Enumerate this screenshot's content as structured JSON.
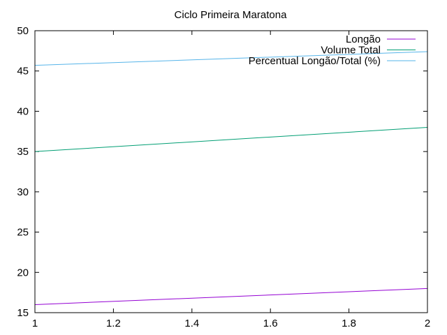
{
  "chart_data": {
    "type": "line",
    "title": "Ciclo Primeira Maratona",
    "xlabel": "",
    "ylabel": "",
    "xlim": [
      1,
      2
    ],
    "ylim": [
      15,
      50
    ],
    "xticks": [
      1,
      1.2,
      1.4,
      1.6,
      1.8,
      2
    ],
    "xtick_labels": [
      "1",
      "1.2",
      "1.4",
      "1.6",
      "1.8",
      "2"
    ],
    "yticks": [
      15,
      20,
      25,
      30,
      35,
      40,
      45,
      50
    ],
    "ytick_labels": [
      "15",
      "20",
      "25",
      "30",
      "35",
      "40",
      "45",
      "50"
    ],
    "grid": false,
    "legend_position": "top-right",
    "series": [
      {
        "name": "Longão",
        "color": "#9400d3",
        "x": [
          1,
          2
        ],
        "y": [
          16,
          18
        ]
      },
      {
        "name": "Volume Total",
        "color": "#009e73",
        "x": [
          1,
          2
        ],
        "y": [
          35,
          38
        ]
      },
      {
        "name": "Percentual Longão/Total (%)",
        "color": "#56b4e9",
        "x": [
          1,
          2
        ],
        "y": [
          45.7,
          47.4
        ]
      }
    ]
  }
}
